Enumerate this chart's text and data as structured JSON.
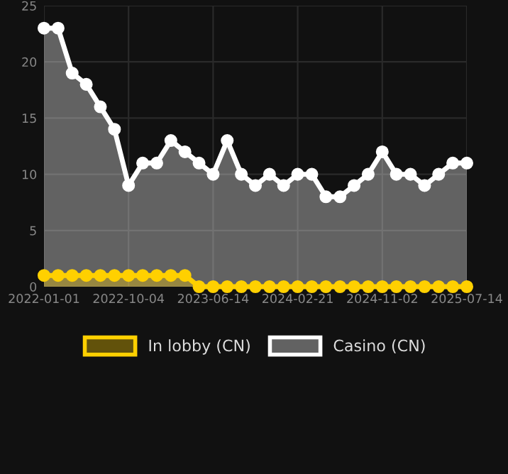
{
  "chart_data": {
    "type": "area",
    "categories": [
      "2022-01-01",
      null,
      null,
      null,
      null,
      null,
      "2022-10-04",
      null,
      null,
      null,
      null,
      null,
      "2023-06-14",
      null,
      null,
      null,
      null,
      null,
      "2024-02-21",
      null,
      null,
      null,
      null,
      null,
      "2024-11-02",
      null,
      null,
      null,
      null,
      null,
      "2025-07-14"
    ],
    "series": [
      {
        "name": "In lobby (CN)",
        "color": "#ffd000",
        "values": [
          1,
          1,
          1,
          1,
          1,
          1,
          1,
          1,
          1,
          1,
          1,
          0,
          0,
          0,
          0,
          0,
          0,
          0,
          0,
          0,
          0,
          0,
          0,
          0,
          0,
          0,
          0,
          0,
          0,
          0,
          0
        ]
      },
      {
        "name": "Casino (CN)",
        "color": "#ffffff",
        "values": [
          23,
          23,
          19,
          18,
          16,
          14,
          9,
          11,
          11,
          13,
          12,
          11,
          10,
          13,
          10,
          9,
          10,
          9,
          10,
          10,
          8,
          8,
          9,
          10,
          12,
          10,
          10,
          9,
          10,
          11,
          11
        ]
      }
    ],
    "ylim": [
      0,
      25
    ],
    "yticks": [
      0,
      5,
      10,
      15,
      20,
      25
    ],
    "grid": true,
    "legend": "bottom",
    "marker": "circle",
    "line_style": "solid"
  }
}
